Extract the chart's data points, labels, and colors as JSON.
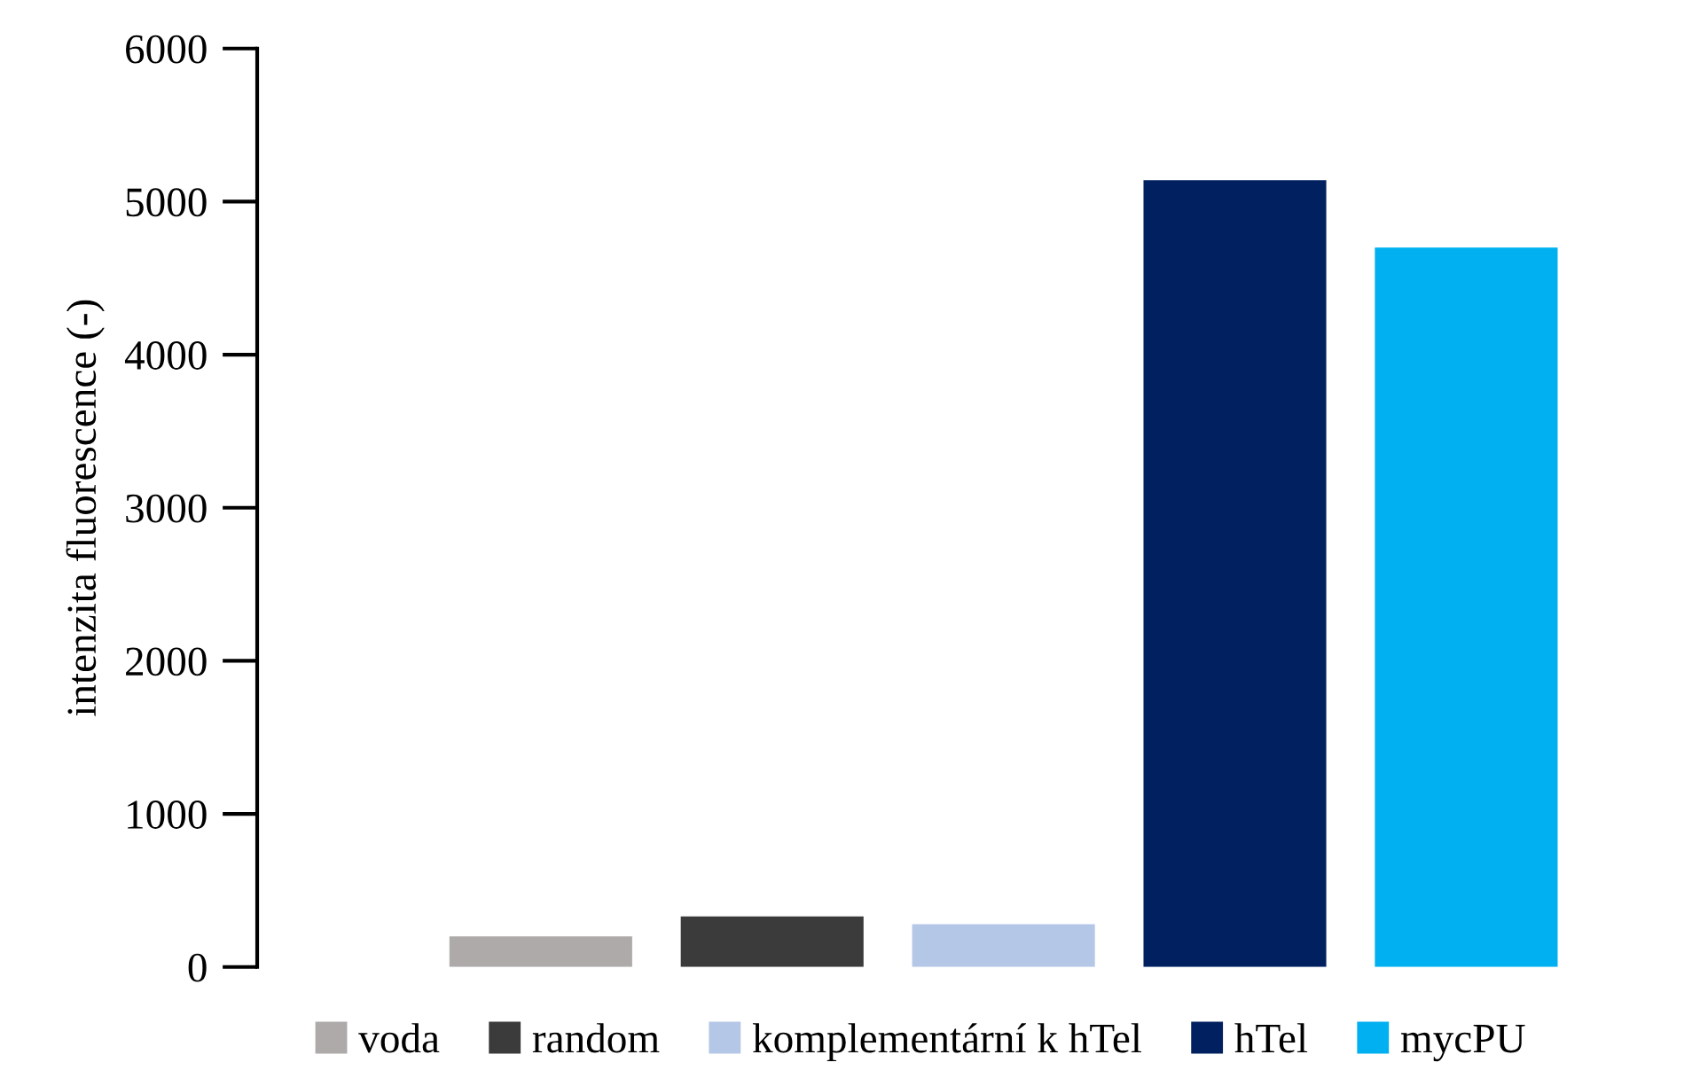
{
  "chart_data": {
    "type": "bar",
    "ylabel": "intenzita fluorescence (-)",
    "categories": [
      null
    ],
    "series": [
      {
        "name": "voda",
        "color": "#aeaaaa",
        "values": [
          200
        ]
      },
      {
        "name": "random",
        "color": "#3b3b3b",
        "values": [
          330
        ]
      },
      {
        "name": "komplementární k hTel",
        "color": "#b4c7e7",
        "values": [
          280
        ]
      },
      {
        "name": "hTel",
        "color": "#002060",
        "values": [
          5140
        ]
      },
      {
        "name": "mycPU",
        "color": "#00b0f0",
        "values": [
          4700
        ]
      }
    ],
    "ylim": [
      0,
      6000
    ],
    "yticks": [
      0,
      1000,
      2000,
      3000,
      4000,
      5000,
      6000
    ],
    "grid": false,
    "legend": "bottom",
    "tick_labels": "y"
  }
}
